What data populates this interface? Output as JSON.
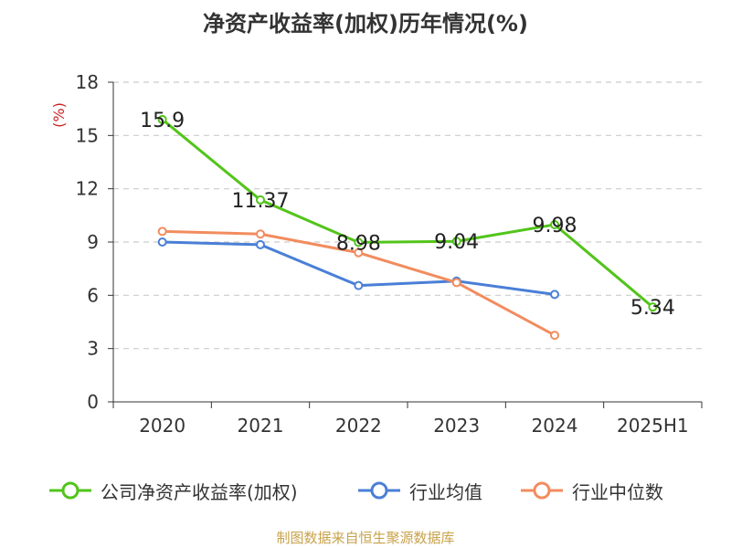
{
  "chart_data": {
    "type": "line",
    "title": "净资产收益率(加权)历年情况(%)",
    "ylabel": "(%)",
    "ylim": [
      0,
      18
    ],
    "yticks": [
      0,
      3,
      6,
      9,
      12,
      15,
      18
    ],
    "categories": [
      "2020",
      "2021",
      "2022",
      "2023",
      "2024",
      "2025H1"
    ],
    "grid": true,
    "legend_position": "bottom",
    "series": [
      {
        "name": "公司净资产收益率(加权)",
        "color": "#52c41a",
        "values": [
          15.9,
          11.37,
          8.98,
          9.04,
          9.98,
          5.34
        ],
        "labels": [
          "15.9",
          "11.37",
          "8.98",
          "9.04",
          "9.98",
          "5.34"
        ]
      },
      {
        "name": "行业均值",
        "color": "#4a7fd6",
        "values": [
          9.0,
          8.85,
          6.55,
          6.8,
          6.05,
          null
        ]
      },
      {
        "name": "行业中位数",
        "color": "#f28c5e",
        "values": [
          9.6,
          9.45,
          8.4,
          6.72,
          3.75,
          null
        ]
      }
    ]
  },
  "source": "制图数据来自恒生聚源数据库"
}
